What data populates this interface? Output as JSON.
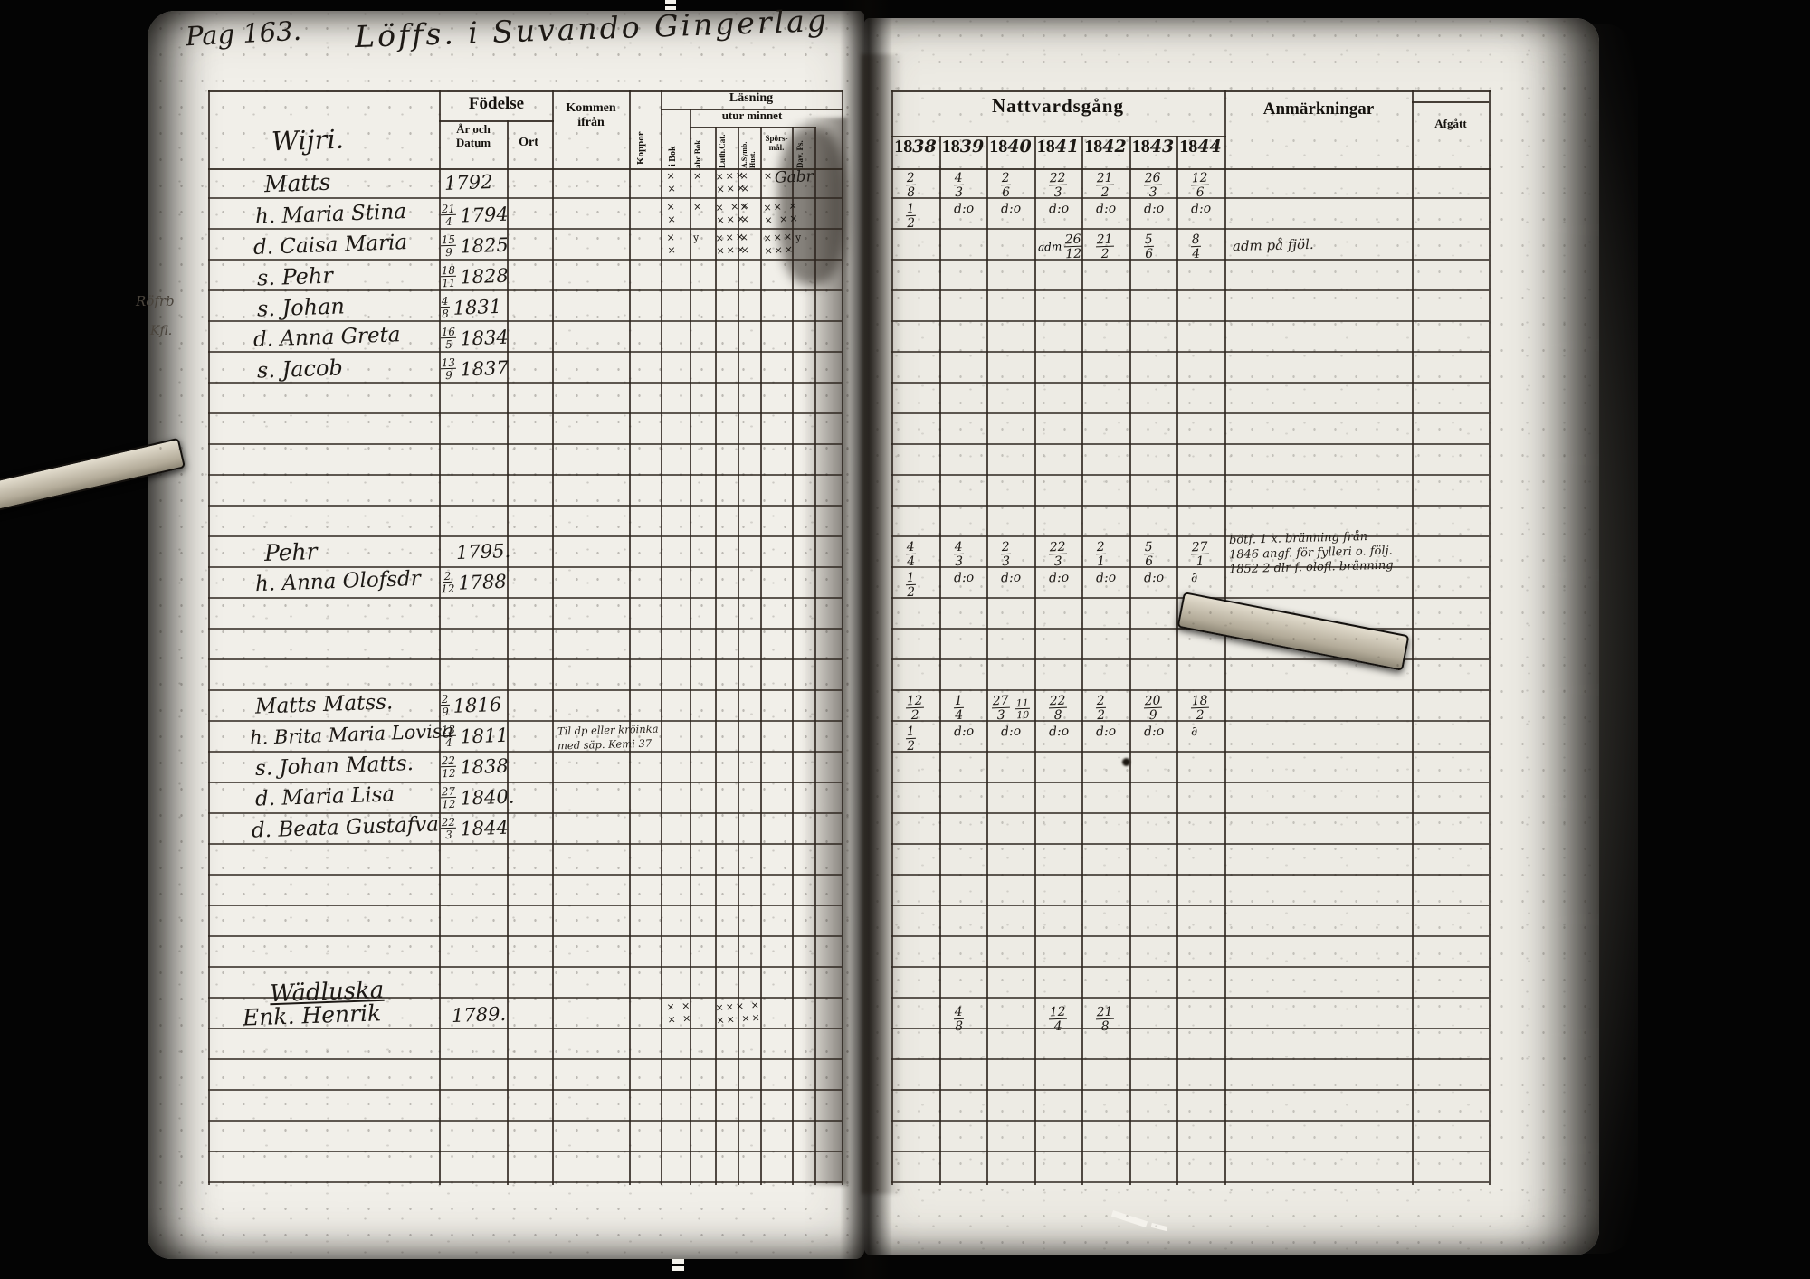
{
  "scan": {
    "page_label": "Pag 163.",
    "title": "Löffs. i Suvando Gingerlag"
  },
  "colors": {
    "page": "#f1efe9",
    "ink": "#1d1915",
    "grid_line": "#2d251e"
  },
  "left": {
    "headers": {
      "fodelse": "Födelse",
      "ar_och_datum": "År och\nDatum",
      "ort": "Ort",
      "kommen_ifran": "Kommen\nifrån",
      "koppor": "Koppor",
      "lasning": "Läsning",
      "utur_minnet": "utur minnet",
      "i_bok": "i Bok",
      "abc_bok": "abc Bok",
      "luth_cat": "Luth.Cat.",
      "symb": "A.Symb. Hust.",
      "sporsmal": "Spörs-\nmål.",
      "dav_ps": "Dav. Ps."
    },
    "farm1": "Wijri.",
    "farm2": "Wädluska",
    "margin1": "Röfrb",
    "margin2": "Kfl.",
    "rows": {
      "r1": {
        "n": "Matts",
        "y": "1792"
      },
      "r2": {
        "n": "h. Maria Stina",
        "f": "21/4",
        "y": "1794"
      },
      "r3": {
        "n": "d. Caisa Maria",
        "f": "15/9",
        "y": "1825"
      },
      "r4": {
        "n": "s. Pehr",
        "f": "18/11",
        "y": "1828"
      },
      "r5": {
        "n": "s. Johan",
        "f": "4/8",
        "y": "1831"
      },
      "r6": {
        "n": "d. Anna Greta",
        "f": "16/5",
        "y": "1834"
      },
      "r7": {
        "n": "s. Jacob",
        "f": "13/9",
        "y": "1837"
      },
      "r12": {
        "n": "Pehr",
        "y": "1795."
      },
      "r13": {
        "n": "h. Anna Olofsdr",
        "f": "2/12",
        "y": "1788"
      },
      "r17": {
        "n": "Matts Matss.",
        "f": "2/9",
        "y": "1816"
      },
      "r18": {
        "n": "h. Brita Maria Lovisa",
        "f": "13/4",
        "y": "1811"
      },
      "r19": {
        "n": "s. Johan Matts.",
        "f": "22/12",
        "y": "1838"
      },
      "r20": {
        "n": "d. Maria Lisa",
        "f": "27/12",
        "y": "1840."
      },
      "r21": {
        "n": "d. Beata Gustafva",
        "f": "22/3",
        "y": "1844"
      },
      "r27": {
        "n": "Enk. Henrik",
        "y": "1789."
      }
    },
    "kommen_note1": "Til dp eller kröinka",
    "kommen_note2": "med säp. Kemi 37",
    "marks": {
      "r1": {
        "ibok": "×\n×",
        "abc": "×",
        "luth": "×××\n×××",
        "symb": "×\n×",
        "spors": "×",
        "script": "Gabr"
      },
      "r2": {
        "ibok": "×\n×",
        "abc": "×",
        "luth": "× ××\n×××",
        "symb": "×\n×",
        "spors": "×× ×\n× ××"
      },
      "r3": {
        "ibok": "×\n×",
        "abc": "y",
        "luth": "×××\n×××",
        "symb": "×\n×",
        "spors": "×××\n×××",
        "dav": "y"
      },
      "r27": {
        "ibok": "× ×\n× ×",
        "luth": "××× ×\n×× ××"
      }
    }
  },
  "right": {
    "headers": {
      "nattvardsgang": "Nattvardsgång",
      "anmarkningar": "Anmärkningar",
      "afgatt": "Afgått"
    },
    "year_prefix": "18",
    "year_suffix": [
      "38",
      "39",
      "40",
      "41",
      "42",
      "43",
      "44"
    ],
    "comm": {
      "r1": [
        "2/8",
        "4/3",
        "2/6",
        "22/3",
        "21/2",
        "26/3",
        "12/6"
      ],
      "r2": [
        "1/2",
        "d:o",
        "d:o",
        "d:o",
        "d:o",
        "d:o",
        "d:o"
      ],
      "r3_adm": "adm",
      "r3": [
        "26/12",
        "21/2",
        "5/6",
        "8/4"
      ],
      "r12": [
        "4/4",
        "4/3",
        "2/3",
        "22/3",
        "2/1",
        "5/6",
        "27/1"
      ],
      "r13": [
        "1/2",
        "d:o",
        "d:o",
        "d:o",
        "d:o",
        "d:o",
        "∂"
      ],
      "r17": [
        "12/2",
        "1/4",
        "27/3",
        "22/8",
        "2/2",
        "20/9",
        "18/2"
      ],
      "r17_extra": "11/10",
      "r18": [
        "1/2",
        "d:o",
        "d:o",
        "d:o",
        "d:o",
        "d:o",
        "∂"
      ],
      "r27": [
        "4/8",
        "12/4",
        "21/8"
      ]
    },
    "anm": {
      "r3": "adm på fjöl.",
      "r12_1": "bötf. 1 x. bränning från",
      "r12_2": "1846 angf. för fylleri o. följ.",
      "r12_3": "1852 2 dlr f. olofl. bränning"
    }
  }
}
